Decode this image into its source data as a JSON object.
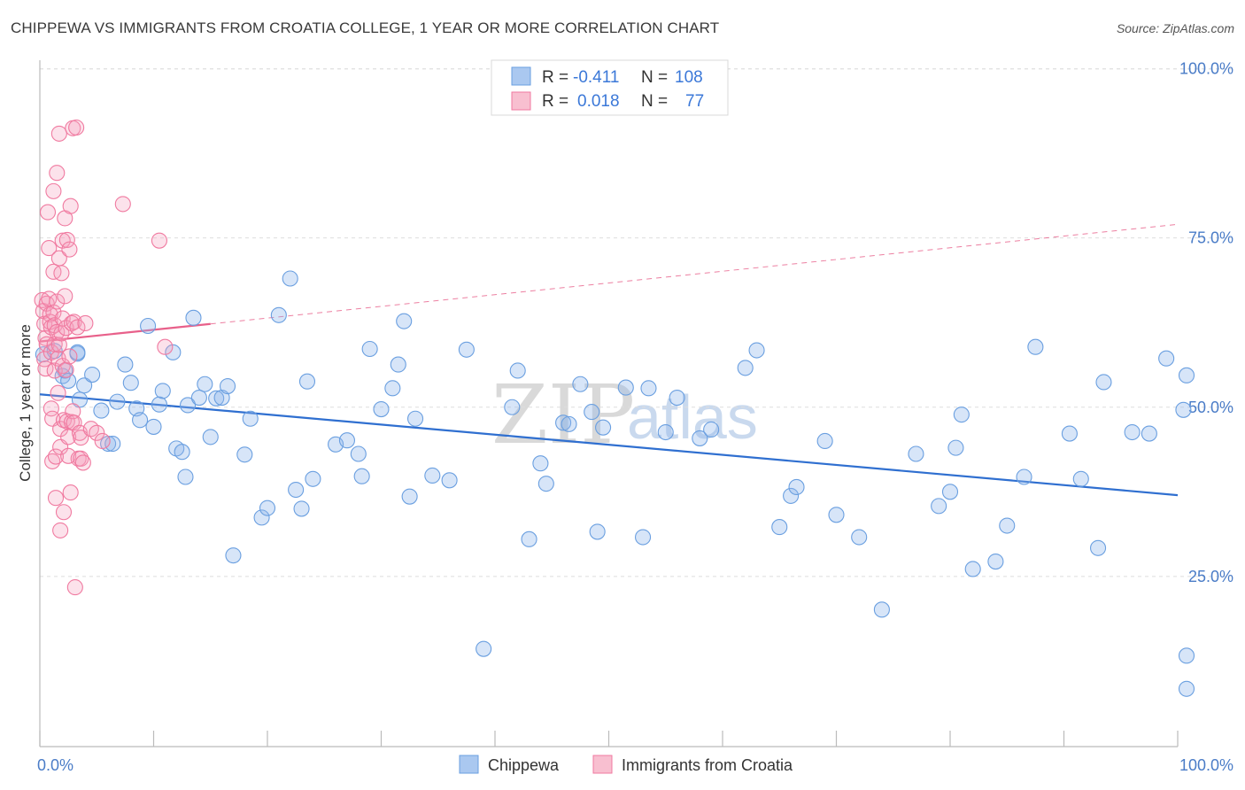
{
  "title": "CHIPPEWA VS IMMIGRANTS FROM CROATIA COLLEGE, 1 YEAR OR MORE CORRELATION CHART",
  "source": "Source: ZipAtlas.com",
  "watermark": {
    "zip": "ZIP",
    "atlas": "atlas"
  },
  "legend": {
    "r_label": "R =",
    "n_label": "N =",
    "rows": [
      {
        "r": "-0.411",
        "n": "108"
      },
      {
        "r": "0.018",
        "n": "77"
      }
    ]
  },
  "bottom_legend": [
    "Chippewa",
    "Immigrants from Croatia"
  ],
  "chart_data": {
    "type": "scatter",
    "title": "CHIPPEWA VS IMMIGRANTS FROM CROATIA COLLEGE, 1 YEAR OR MORE CORRELATION CHART",
    "xlabel": "",
    "ylabel": "College, 1 year or more",
    "xlim": [
      0,
      100
    ],
    "ylim": [
      0,
      102
    ],
    "x_tick_labels": [
      "0.0%",
      "100.0%"
    ],
    "y_tick_labels": [
      "100.0%",
      "75.0%",
      "50.0%",
      "25.0%"
    ],
    "y_ticks": [
      100,
      75,
      50,
      25
    ],
    "grid": true,
    "colors": {
      "Chippewa": "#6a9fe0",
      "Immigrants from Croatia": "#f07aa0",
      "trend_blue": "#2f6fd0",
      "trend_pink": "#e8608a"
    },
    "series": [
      {
        "name": "Chippewa",
        "r": -0.411,
        "n": 108,
        "trend": {
          "x0": 0,
          "y0": 51.9,
          "x1": 100,
          "y1": 37.0
        },
        "points": [
          [
            0.3,
            57.8
          ],
          [
            1.3,
            58.3
          ],
          [
            2,
            54.6
          ],
          [
            2.2,
            55.4
          ],
          [
            2.5,
            53.9
          ],
          [
            3.3,
            57.9
          ],
          [
            3.3,
            58.1
          ],
          [
            3.5,
            51.1
          ],
          [
            3.9,
            53.2
          ],
          [
            4.6,
            54.8
          ],
          [
            5.4,
            49.5
          ],
          [
            6,
            44.6
          ],
          [
            6.4,
            44.6
          ],
          [
            6.8,
            50.8
          ],
          [
            7.5,
            56.3
          ],
          [
            8,
            53.6
          ],
          [
            8.5,
            49.8
          ],
          [
            8.8,
            48.1
          ],
          [
            9.5,
            62
          ],
          [
            10,
            47.1
          ],
          [
            10.5,
            50.4
          ],
          [
            10.8,
            52.4
          ],
          [
            11.7,
            58.1
          ],
          [
            12,
            43.9
          ],
          [
            12.5,
            43.4
          ],
          [
            12.8,
            39.7
          ],
          [
            13,
            50.3
          ],
          [
            13.5,
            63.2
          ],
          [
            14,
            51.4
          ],
          [
            14.5,
            53.4
          ],
          [
            15,
            45.6
          ],
          [
            15.5,
            51.3
          ],
          [
            16,
            51.4
          ],
          [
            16.5,
            53.1
          ],
          [
            17,
            28.1
          ],
          [
            18,
            43
          ],
          [
            18.5,
            48.3
          ],
          [
            19.5,
            33.7
          ],
          [
            20,
            35.1
          ],
          [
            21,
            63.6
          ],
          [
            22,
            69
          ],
          [
            22.5,
            37.8
          ],
          [
            23,
            35
          ],
          [
            23.5,
            53.8
          ],
          [
            24,
            39.4
          ],
          [
            26,
            44.5
          ],
          [
            27,
            45.1
          ],
          [
            28,
            43.1
          ],
          [
            28.3,
            39.8
          ],
          [
            29,
            58.6
          ],
          [
            30,
            49.7
          ],
          [
            31,
            52.8
          ],
          [
            31.5,
            56.3
          ],
          [
            32,
            62.7
          ],
          [
            32.5,
            36.8
          ],
          [
            33,
            48.3
          ],
          [
            34.5,
            39.9
          ],
          [
            36,
            39.2
          ],
          [
            37.5,
            58.5
          ],
          [
            39,
            14.3
          ],
          [
            41.5,
            50
          ],
          [
            42,
            55.4
          ],
          [
            43,
            30.5
          ],
          [
            44,
            41.7
          ],
          [
            44.5,
            38.7
          ],
          [
            46,
            47.7
          ],
          [
            46.5,
            47.5
          ],
          [
            47.5,
            53.4
          ],
          [
            48.5,
            49.3
          ],
          [
            49,
            31.6
          ],
          [
            49.5,
            47
          ],
          [
            51.5,
            52.9
          ],
          [
            53,
            30.8
          ],
          [
            53.5,
            52.8
          ],
          [
            55,
            46.3
          ],
          [
            56,
            51.4
          ],
          [
            58,
            45.4
          ],
          [
            59,
            46.7
          ],
          [
            62,
            55.8
          ],
          [
            63,
            58.4
          ],
          [
            65,
            32.3
          ],
          [
            66,
            36.9
          ],
          [
            66.5,
            38.2
          ],
          [
            69,
            45
          ],
          [
            70,
            34.1
          ],
          [
            72,
            30.8
          ],
          [
            74,
            20.1
          ],
          [
            77,
            43.1
          ],
          [
            79,
            35.4
          ],
          [
            80,
            37.5
          ],
          [
            80.5,
            44
          ],
          [
            81,
            48.9
          ],
          [
            82,
            26.1
          ],
          [
            84,
            27.2
          ],
          [
            85,
            32.5
          ],
          [
            86.5,
            39.7
          ],
          [
            87.5,
            58.9
          ],
          [
            90.5,
            46.1
          ],
          [
            91.5,
            39.4
          ],
          [
            93,
            29.2
          ],
          [
            93.5,
            53.7
          ],
          [
            96,
            46.3
          ],
          [
            97.5,
            46.1
          ],
          [
            99,
            57.2
          ],
          [
            100.5,
            49.6
          ],
          [
            101,
            13.3
          ],
          [
            101.5,
            8.4
          ],
          [
            103,
            54.7
          ]
        ]
      },
      {
        "name": "Immigrants from Croatia",
        "r": 0.018,
        "n": 77,
        "trend": {
          "x0": 0,
          "y0": 59.7,
          "x1": 100,
          "y1": 77.0
        },
        "points": [
          [
            0.2,
            65.8
          ],
          [
            0.3,
            64.2
          ],
          [
            0.4,
            62.3
          ],
          [
            0.4,
            57.1
          ],
          [
            0.5,
            60.2
          ],
          [
            0.5,
            55.7
          ],
          [
            0.6,
            65.3
          ],
          [
            0.6,
            59.3
          ],
          [
            0.7,
            78.8
          ],
          [
            0.8,
            73.5
          ],
          [
            0.8,
            66
          ],
          [
            0.9,
            63.7
          ],
          [
            0.9,
            62.6
          ],
          [
            1,
            61.8
          ],
          [
            1,
            58.1
          ],
          [
            1,
            49.8
          ],
          [
            1.1,
            48.3
          ],
          [
            1.1,
            42
          ],
          [
            1.2,
            81.9
          ],
          [
            1.2,
            70
          ],
          [
            1.2,
            64
          ],
          [
            1.3,
            62.1
          ],
          [
            1.3,
            59.3
          ],
          [
            1.3,
            55.4
          ],
          [
            1.4,
            42.7
          ],
          [
            1.4,
            36.6
          ],
          [
            1.5,
            84.6
          ],
          [
            1.5,
            65.6
          ],
          [
            1.5,
            61.1
          ],
          [
            1.6,
            57.2
          ],
          [
            1.6,
            52.1
          ],
          [
            1.7,
            90.4
          ],
          [
            1.7,
            72
          ],
          [
            1.7,
            59.2
          ],
          [
            1.8,
            46.8
          ],
          [
            1.8,
            44.1
          ],
          [
            1.8,
            31.8
          ],
          [
            1.9,
            69.8
          ],
          [
            1.9,
            60.9
          ],
          [
            2,
            74.6
          ],
          [
            2,
            63.1
          ],
          [
            2,
            56.1
          ],
          [
            2.1,
            48.1
          ],
          [
            2.1,
            34.5
          ],
          [
            2.2,
            77.9
          ],
          [
            2.2,
            66.4
          ],
          [
            2.3,
            61.7
          ],
          [
            2.3,
            55.5
          ],
          [
            2.4,
            74.7
          ],
          [
            2.4,
            47.9
          ],
          [
            2.5,
            45.6
          ],
          [
            2.5,
            42.8
          ],
          [
            2.6,
            73.3
          ],
          [
            2.6,
            57.5
          ],
          [
            2.7,
            79.7
          ],
          [
            2.7,
            37.4
          ],
          [
            2.8,
            62.4
          ],
          [
            2.8,
            47.8
          ],
          [
            2.9,
            91.2
          ],
          [
            2.9,
            49.4
          ],
          [
            3,
            62.6
          ],
          [
            3,
            47.7
          ],
          [
            3.1,
            23.4
          ],
          [
            3.2,
            91.3
          ],
          [
            3.3,
            61.8
          ],
          [
            3.4,
            42.4
          ],
          [
            3.5,
            46.2
          ],
          [
            3.6,
            45.5
          ],
          [
            3.6,
            42.4
          ],
          [
            3.8,
            41.8
          ],
          [
            4,
            62.4
          ],
          [
            4.5,
            46.8
          ],
          [
            5,
            46.2
          ],
          [
            5.5,
            45
          ],
          [
            7.3,
            80
          ],
          [
            10.5,
            74.6
          ],
          [
            11,
            58.9
          ]
        ]
      }
    ]
  }
}
